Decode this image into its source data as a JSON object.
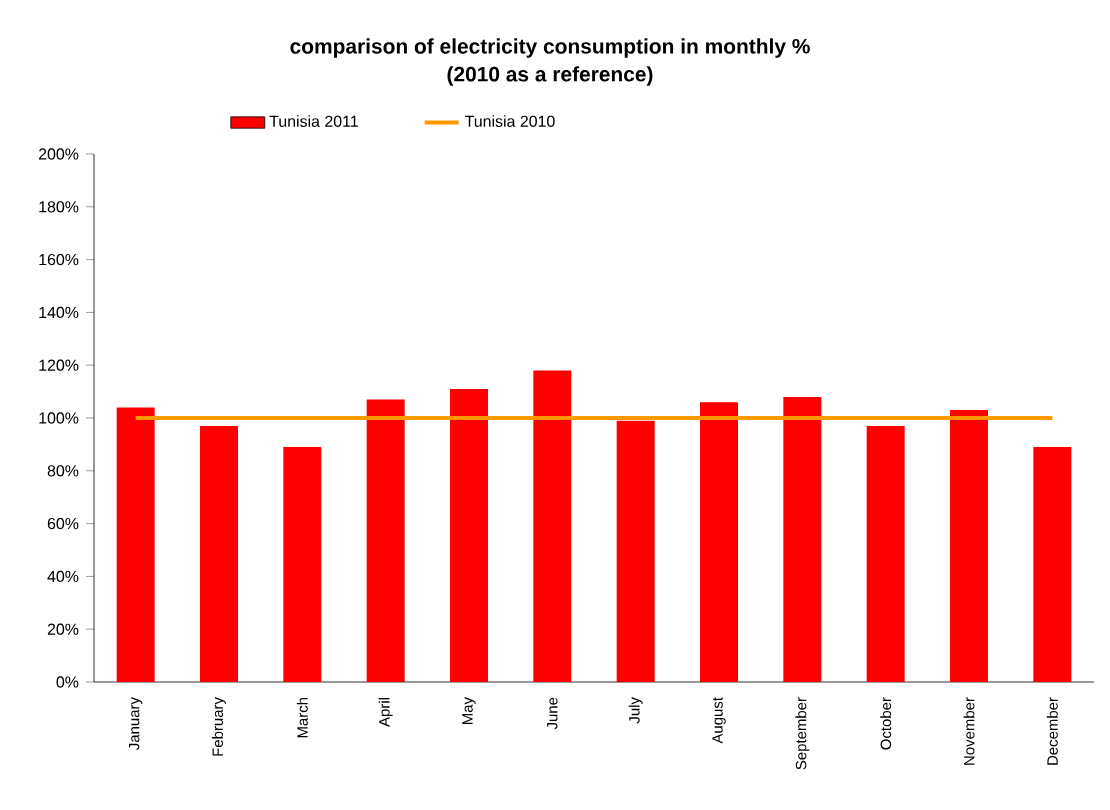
{
  "chart_data": {
    "type": "bar",
    "title": "comparison of electricity consumption in monthly %\n(2010 as a reference)",
    "categories": [
      "January",
      "February",
      "March",
      "April",
      "May",
      "June",
      "July",
      "August",
      "September",
      "October",
      "November",
      "December"
    ],
    "series": [
      {
        "name": "Tunisia 2011",
        "color": "#ff0000",
        "values": [
          104,
          97,
          89,
          107,
          111,
          118,
          99,
          106,
          108,
          97,
          103,
          89
        ]
      },
      {
        "name": "Tunisia 2010",
        "type": "line",
        "color": "#ff9900",
        "values": [
          100,
          100,
          100,
          100,
          100,
          100,
          100,
          100,
          100,
          100,
          100,
          100
        ]
      }
    ],
    "ylim": [
      0,
      200
    ],
    "yticks": [
      {
        "value": 0,
        "label": "0%"
      },
      {
        "value": 20,
        "label": "20%"
      },
      {
        "value": 40,
        "label": "40%"
      },
      {
        "value": 60,
        "label": "60%"
      },
      {
        "value": 80,
        "label": "80%"
      },
      {
        "value": 100,
        "label": "100%"
      },
      {
        "value": 120,
        "label": "120%"
      },
      {
        "value": 140,
        "label": "140%"
      },
      {
        "value": 160,
        "label": "160%"
      },
      {
        "value": 180,
        "label": "180%"
      },
      {
        "value": 200,
        "label": "200%"
      }
    ],
    "grid": false,
    "legend": "top left",
    "marker": "none"
  }
}
